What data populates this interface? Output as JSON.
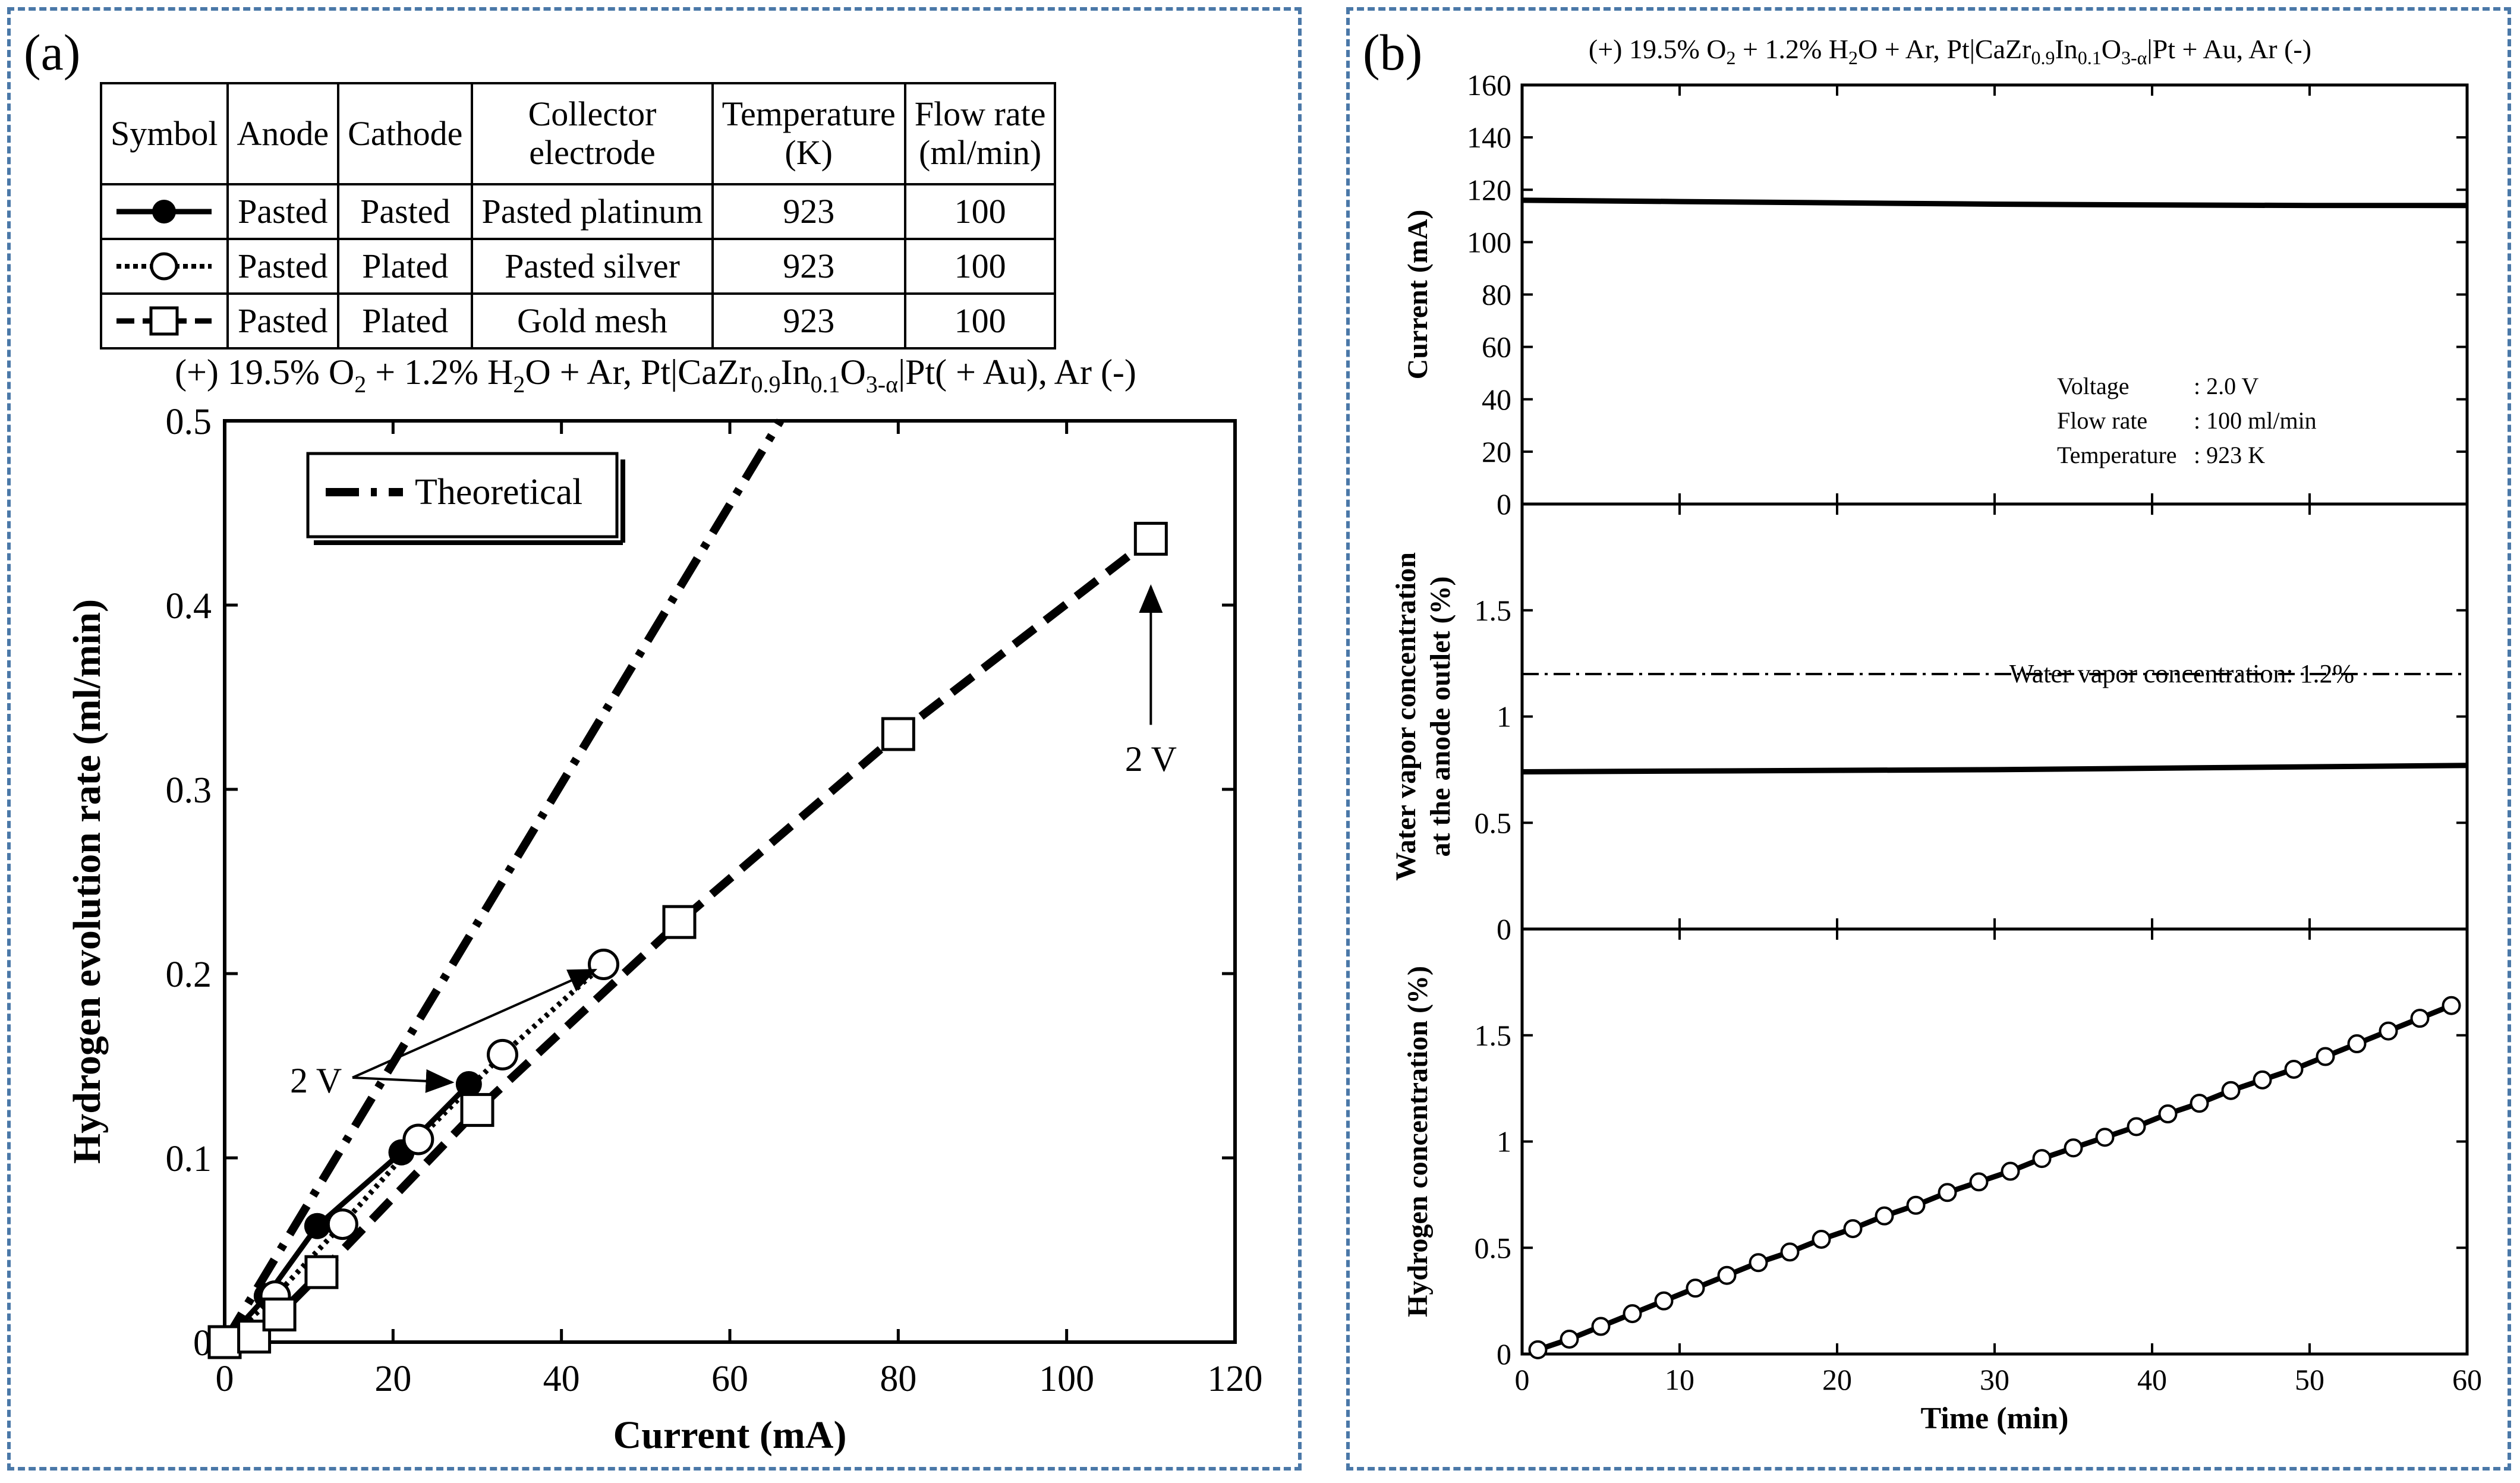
{
  "panels": {
    "a": {
      "label": "(a)",
      "table": {
        "headers": [
          "Symbol",
          "Anode",
          "Cathode",
          "Collector\nelectrode",
          "Temperature\n(K)",
          "Flow rate\n(ml/min)"
        ],
        "rows": [
          {
            "symbol": "filled-circle-solid-line",
            "anode": "Pasted",
            "cathode": "Pasted",
            "collector": "Pasted platinum",
            "temperature": "923",
            "flow": "100"
          },
          {
            "symbol": "open-circle-dotted-line",
            "anode": "Pasted",
            "cathode": "Plated",
            "collector": "Pasted silver",
            "temperature": "923",
            "flow": "100"
          },
          {
            "symbol": "open-square-dashed-line",
            "anode": "Pasted",
            "cathode": "Plated",
            "collector": "Gold mesh",
            "temperature": "923",
            "flow": "100"
          }
        ]
      },
      "cell_caption": {
        "pre": "(+) 19.5% O",
        "s1": "2",
        "mid": "  + 1.2% H",
        "s2": "2",
        "mid2": "O + Ar, Pt|CaZr",
        "s3": "0.9",
        "mid3": "In",
        "s4": "0.1",
        "mid4": "O",
        "s5": "3-α",
        "post": "|Pt( + Au), Ar (-)"
      },
      "annotations": {
        "two_v_left": "2 V",
        "two_v_right": "2 V"
      }
    },
    "b": {
      "label": "(b)",
      "cell_caption": {
        "pre": "(+) 19.5% O",
        "s1": "2",
        "mid": "  + 1.2% H",
        "s2": "2",
        "mid2": "O + Ar, Pt|CaZr",
        "s3": "0.9",
        "mid3": "In",
        "s4": "0.1",
        "mid4": "O",
        "s5": "3-α",
        "post": "|Pt + Au, Ar (-)"
      },
      "conditions": {
        "voltage_label": "Voltage",
        "voltage_value": ": 2.0 V",
        "flow_label": "Flow rate",
        "flow_value": ": 100 ml/min",
        "temp_label": "Temperature",
        "temp_value": ": 923 K"
      },
      "water_ref_label": "Water vapor concentration: 1.2%"
    }
  },
  "chart_data": [
    {
      "id": "a",
      "type": "line",
      "title": "",
      "xlabel": "Current (mA)",
      "ylabel": "Hydrogen evolution rate (ml/min)",
      "xlim": [
        0,
        120
      ],
      "ylim": [
        0,
        0.5
      ],
      "xticks": [
        0,
        20,
        40,
        60,
        80,
        100,
        120
      ],
      "yticks": [
        0,
        0.1,
        0.2,
        0.3,
        0.4,
        0.5
      ],
      "ytick_labels": [
        "0",
        "0.1",
        "0.2",
        "0.3",
        "0.4",
        "0.5"
      ],
      "legend": {
        "label": "Theoretical",
        "placement": "top-left"
      },
      "series": [
        {
          "name": "Theoretical",
          "style": "dash-dot",
          "marker": "none",
          "x": [
            0,
            66
          ],
          "y": [
            0,
            0.5
          ]
        },
        {
          "name": "Pasted platinum",
          "style": "solid",
          "marker": "filled-circle",
          "x": [
            0,
            5,
            11,
            21,
            29
          ],
          "y": [
            0,
            0.025,
            0.063,
            0.103,
            0.14
          ]
        },
        {
          "name": "Pasted silver",
          "style": "dotted",
          "marker": "open-circle",
          "x": [
            0,
            6,
            14,
            23,
            33,
            45
          ],
          "y": [
            0,
            0.025,
            0.064,
            0.11,
            0.156,
            0.205
          ]
        },
        {
          "name": "Gold mesh",
          "style": "dashed",
          "marker": "open-square",
          "x": [
            0,
            3.5,
            6.5,
            11.5,
            30,
            54,
            80,
            110
          ],
          "y": [
            0,
            0.003,
            0.015,
            0.038,
            0.126,
            0.228,
            0.33,
            0.436
          ]
        }
      ]
    },
    {
      "id": "b-current",
      "type": "line",
      "xlabel": "",
      "ylabel": "Current (mA)",
      "xlim": [
        0,
        60
      ],
      "ylim": [
        0,
        160
      ],
      "yticks": [
        0,
        20,
        40,
        60,
        80,
        100,
        120,
        140,
        160
      ],
      "series": [
        {
          "name": "Current",
          "x": [
            0,
            10,
            20,
            30,
            40,
            50,
            60
          ],
          "y": [
            116,
            115.5,
            115,
            114.5,
            114.2,
            114,
            114
          ]
        }
      ]
    },
    {
      "id": "b-water",
      "type": "line",
      "ylabel": "Water vapor concentration at the anode outlet (%)",
      "xlim": [
        0,
        60
      ],
      "ylim": [
        0,
        2
      ],
      "yticks": [
        0,
        0.5,
        1,
        1.5
      ],
      "ytick_labels": [
        "0",
        "0.5",
        "1",
        "1.5"
      ],
      "series": [
        {
          "name": "Water vapor outlet",
          "x": [
            0,
            30,
            60
          ],
          "y": [
            0.74,
            0.75,
            0.77
          ]
        },
        {
          "name": "Water vapor concentration: 1.2%",
          "style": "dash-dot",
          "x": [
            0,
            60
          ],
          "y": [
            1.2,
            1.2
          ]
        }
      ]
    },
    {
      "id": "b-hydrogen",
      "type": "line",
      "xlabel": "Time (min)",
      "ylabel": "Hydrogen concentration (%)",
      "xlim": [
        0,
        60
      ],
      "ylim": [
        0,
        2
      ],
      "xticks": [
        0,
        10,
        20,
        30,
        40,
        50,
        60
      ],
      "yticks": [
        0,
        0.5,
        1,
        1.5
      ],
      "ytick_labels": [
        "0",
        "0.5",
        "1",
        "1.5"
      ],
      "series": [
        {
          "name": "Hydrogen",
          "marker": "open-circle",
          "x": [
            1,
            3,
            5,
            7,
            9,
            11,
            13,
            15,
            17,
            19,
            21,
            23,
            25,
            27,
            29,
            31,
            33,
            35,
            37,
            39,
            41,
            43,
            45,
            47,
            49,
            51,
            53,
            55,
            57,
            59
          ],
          "y": [
            0.02,
            0.07,
            0.13,
            0.19,
            0.25,
            0.31,
            0.37,
            0.43,
            0.48,
            0.54,
            0.59,
            0.65,
            0.7,
            0.76,
            0.81,
            0.86,
            0.92,
            0.97,
            1.02,
            1.07,
            1.13,
            1.18,
            1.24,
            1.29,
            1.34,
            1.4,
            1.46,
            1.52,
            1.58,
            1.64
          ]
        }
      ]
    }
  ]
}
